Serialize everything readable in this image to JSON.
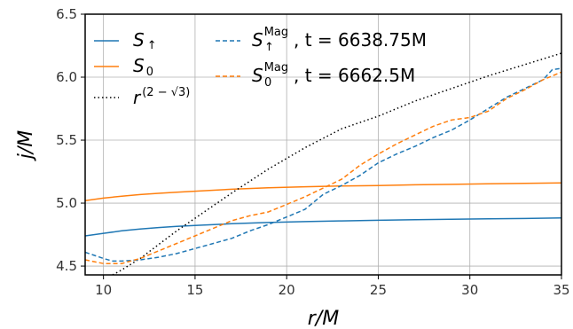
{
  "chart_data": {
    "type": "line",
    "xlabel": "r/M",
    "ylabel": "j/M",
    "xlim": [
      9,
      35
    ],
    "ylim": [
      4.43,
      6.5
    ],
    "x_ticks": [
      10,
      15,
      20,
      25,
      30,
      35
    ],
    "y_ticks": [
      4.5,
      5.0,
      5.5,
      6.0,
      6.5
    ],
    "x_tick_labels": [
      "10",
      "15",
      "20",
      "25",
      "30",
      "35"
    ],
    "y_tick_labels": [
      "4.5",
      "5.0",
      "5.5",
      "6.0",
      "6.5"
    ],
    "grid": true,
    "legend_position": "top-left",
    "series": [
      {
        "name": "S↑",
        "label_main": "S",
        "label_sub": "↑",
        "color": "#1f77b4",
        "style": "solid",
        "x": [
          9,
          10,
          11,
          12,
          13,
          14,
          15,
          17,
          19,
          21,
          23,
          25,
          27,
          29,
          31,
          33,
          35
        ],
        "y": [
          4.74,
          4.76,
          4.78,
          4.795,
          4.806,
          4.815,
          4.823,
          4.836,
          4.846,
          4.853,
          4.859,
          4.864,
          4.868,
          4.872,
          4.875,
          4.878,
          4.882
        ]
      },
      {
        "name": "S0",
        "label_main": "S",
        "label_sub": "0",
        "color": "#ff7f0e",
        "style": "solid",
        "x": [
          9,
          10,
          11,
          12,
          13,
          14,
          15,
          17,
          19,
          21,
          23,
          25,
          27,
          29,
          31,
          33,
          35
        ],
        "y": [
          5.02,
          5.04,
          5.055,
          5.068,
          5.078,
          5.087,
          5.095,
          5.11,
          5.122,
          5.13,
          5.136,
          5.14,
          5.145,
          5.149,
          5.153,
          5.157,
          5.16
        ]
      },
      {
        "name": "r^(2−√3)",
        "label_main": "r",
        "label_sup": "(2 − √3)",
        "color": "#000000",
        "style": "dotted",
        "x": [
          10.5,
          11,
          12,
          13,
          14,
          15,
          17,
          19,
          21,
          23,
          25,
          27,
          29,
          31,
          33,
          35
        ],
        "y": [
          4.43,
          4.47,
          4.56,
          4.67,
          4.78,
          4.88,
          5.08,
          5.27,
          5.44,
          5.59,
          5.69,
          5.81,
          5.91,
          6.01,
          6.1,
          6.19
        ]
      },
      {
        "name": "S↑Mag, t = 6638.75M",
        "label_main": "S",
        "label_sup": "Mag",
        "label_sub": "↑",
        "label_tail": ", t = 6638.75M",
        "color": "#1f77b4",
        "style": "dashed",
        "x": [
          9,
          10,
          10.5,
          11,
          12,
          13,
          14,
          15,
          16,
          17,
          18,
          19,
          20,
          21,
          22,
          23,
          24,
          25,
          26,
          27,
          28,
          29,
          30,
          31,
          32,
          33,
          34,
          34.5,
          35
        ],
        "y": [
          4.61,
          4.56,
          4.54,
          4.54,
          4.55,
          4.57,
          4.6,
          4.64,
          4.68,
          4.72,
          4.78,
          4.83,
          4.89,
          4.95,
          5.07,
          5.14,
          5.22,
          5.32,
          5.39,
          5.45,
          5.52,
          5.58,
          5.66,
          5.75,
          5.84,
          5.91,
          5.98,
          6.06,
          6.07
        ]
      },
      {
        "name": "S0Mag, t = 6662.5M",
        "label_main": "S",
        "label_sup": "Mag",
        "label_sub": "0",
        "label_tail": ", t = 6662.5M",
        "color": "#ff7f0e",
        "style": "dashed",
        "x": [
          9,
          10,
          11,
          12,
          13,
          14,
          15,
          16,
          17,
          18,
          19,
          20,
          21,
          22,
          23,
          24,
          25,
          26,
          27,
          28,
          29,
          30,
          31,
          32,
          33,
          34,
          35
        ],
        "y": [
          4.55,
          4.52,
          4.52,
          4.56,
          4.62,
          4.68,
          4.74,
          4.8,
          4.86,
          4.9,
          4.93,
          4.99,
          5.05,
          5.12,
          5.19,
          5.3,
          5.39,
          5.47,
          5.54,
          5.61,
          5.66,
          5.68,
          5.73,
          5.83,
          5.9,
          5.98,
          6.04
        ]
      }
    ]
  }
}
